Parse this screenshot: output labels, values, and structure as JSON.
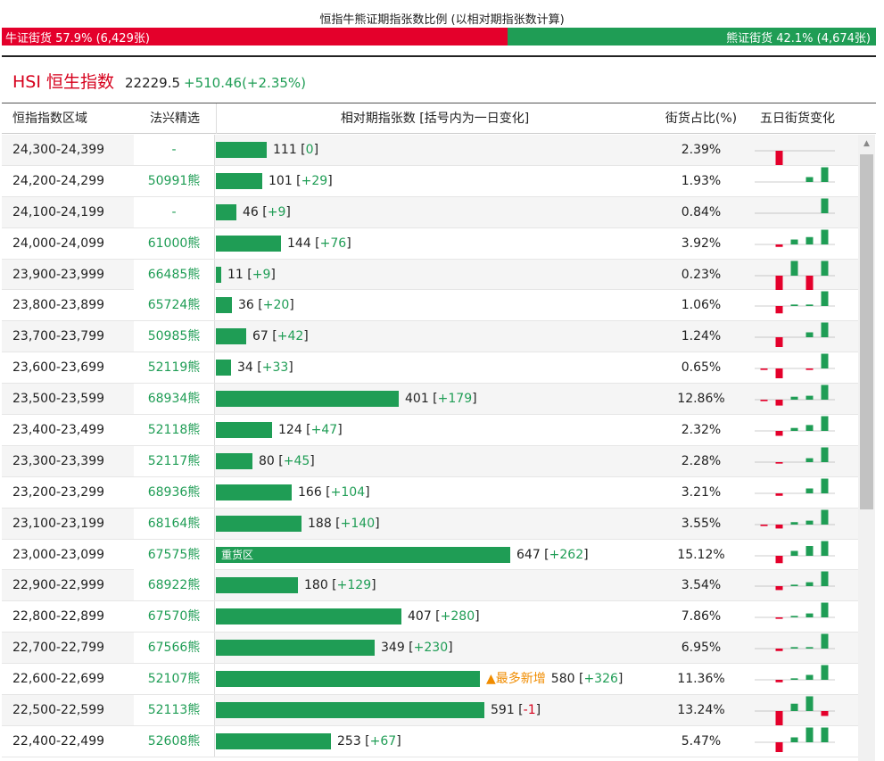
{
  "ratio": {
    "title": "恒指牛熊证期指张数比例 (以相对期指张数计算)",
    "bull_label": "牛证街货 57.9% (6,429张)",
    "bear_label": "熊证街货 42.1% (4,674张)",
    "bull_fraction": 0.579,
    "bull_color": "#e4002b",
    "bear_color": "#1f9d55"
  },
  "index": {
    "name": "HSI 恒生指数",
    "price": "22229.5",
    "change": "+510.46(+2.35%)"
  },
  "columns": {
    "range": "恒指指数区域",
    "pick": "法兴精选",
    "relative": "相对期指张数 [括号内为一日变化]",
    "share": "街货占比(%)",
    "five_day": "五日街货变化"
  },
  "max_count": 647,
  "rows": [
    {
      "range": "24,300-24,399",
      "pick": "-",
      "count": 111,
      "count_text": "111",
      "delta": "0",
      "share": "2.39%",
      "five": [
        0,
        -3,
        0,
        0,
        0
      ]
    },
    {
      "range": "24,200-24,299",
      "pick": "50991熊",
      "count": 101,
      "count_text": "101",
      "delta": "+29",
      "share": "1.93%",
      "five": [
        0,
        0,
        0,
        1,
        3
      ]
    },
    {
      "range": "24,100-24,199",
      "pick": "-",
      "count": 46,
      "count_text": "46",
      "delta": "+9",
      "share": "0.84%",
      "five": [
        0,
        0,
        0,
        0,
        3
      ]
    },
    {
      "range": "24,000-24,099",
      "pick": "61000熊",
      "count": 144,
      "count_text": "144",
      "delta": "+76",
      "share": "3.92%",
      "five": [
        0,
        -0.5,
        1,
        1.5,
        3
      ]
    },
    {
      "range": "23,900-23,999",
      "pick": "66485熊",
      "count": 11,
      "count_text": "11",
      "delta": "+9",
      "share": "0.23%",
      "five": [
        0,
        -3,
        3,
        -3,
        3
      ]
    },
    {
      "range": "23,800-23,899",
      "pick": "65724熊",
      "count": 36,
      "count_text": "36",
      "delta": "+20",
      "share": "1.06%",
      "five": [
        0,
        -1.5,
        0.3,
        0.3,
        3
      ]
    },
    {
      "range": "23,700-23,799",
      "pick": "50985熊",
      "count": 67,
      "count_text": "67",
      "delta": "+42",
      "share": "1.24%",
      "five": [
        0,
        -2,
        0,
        1,
        3
      ]
    },
    {
      "range": "23,600-23,699",
      "pick": "52119熊",
      "count": 34,
      "count_text": "34",
      "delta": "+33",
      "share": "0.65%",
      "five": [
        -0.3,
        -2,
        0,
        -0.3,
        3
      ]
    },
    {
      "range": "23,500-23,599",
      "pick": "68934熊",
      "count": 401,
      "count_text": "401",
      "delta": "+179",
      "share": "12.86%",
      "five": [
        -0.3,
        -1.2,
        0.6,
        0.8,
        3
      ]
    },
    {
      "range": "23,400-23,499",
      "pick": "52118熊",
      "count": 124,
      "count_text": "124",
      "delta": "+47",
      "share": "2.32%",
      "five": [
        0,
        -1,
        0.6,
        1.2,
        3
      ]
    },
    {
      "range": "23,300-23,399",
      "pick": "52117熊",
      "count": 80,
      "count_text": "80",
      "delta": "+45",
      "share": "2.28%",
      "five": [
        0,
        -0.3,
        0,
        0.8,
        3
      ]
    },
    {
      "range": "23,200-23,299",
      "pick": "68936熊",
      "count": 166,
      "count_text": "166",
      "delta": "+104",
      "share": "3.21%",
      "five": [
        0,
        -0.5,
        0,
        1,
        3
      ]
    },
    {
      "range": "23,100-23,199",
      "pick": "68164熊",
      "count": 188,
      "count_text": "188",
      "delta": "+140",
      "share": "3.55%",
      "five": [
        -0.3,
        -0.8,
        0.5,
        0.8,
        3
      ]
    },
    {
      "range": "23,000-23,099",
      "pick": "67575熊",
      "count": 647,
      "count_text": "647",
      "delta": "+262",
      "share": "15.12%",
      "five": [
        0,
        -1.5,
        1,
        2,
        3
      ],
      "tag": "重货区"
    },
    {
      "range": "22,900-22,999",
      "pick": "68922熊",
      "count": 180,
      "count_text": "180",
      "delta": "+129",
      "share": "3.54%",
      "five": [
        0,
        -0.8,
        0.3,
        0.8,
        3
      ]
    },
    {
      "range": "22,800-22,899",
      "pick": "67570熊",
      "count": 407,
      "count_text": "407",
      "delta": "+280",
      "share": "7.86%",
      "five": [
        0,
        -0.3,
        0.3,
        0.8,
        3
      ]
    },
    {
      "range": "22,700-22,799",
      "pick": "67566熊",
      "count": 349,
      "count_text": "349",
      "delta": "+230",
      "share": "6.95%",
      "five": [
        0,
        -0.5,
        0.3,
        0.3,
        3
      ]
    },
    {
      "range": "22,600-22,699",
      "pick": "52107熊",
      "count": 580,
      "count_text": "580",
      "delta": "+326",
      "share": "11.36%",
      "five": [
        0,
        -0.5,
        0.3,
        1,
        3
      ],
      "new_tag": "▲最多新增"
    },
    {
      "range": "22,500-22,599",
      "pick": "52113熊",
      "count": 591,
      "count_text": "591",
      "delta": "-1",
      "share": "13.24%",
      "five": [
        0,
        -3,
        1.5,
        3,
        -1
      ]
    },
    {
      "range": "22,400-22,499",
      "pick": "52608熊",
      "count": 253,
      "count_text": "253",
      "delta": "+67",
      "share": "5.47%",
      "five": [
        0,
        -2,
        1,
        3,
        3
      ]
    }
  ]
}
